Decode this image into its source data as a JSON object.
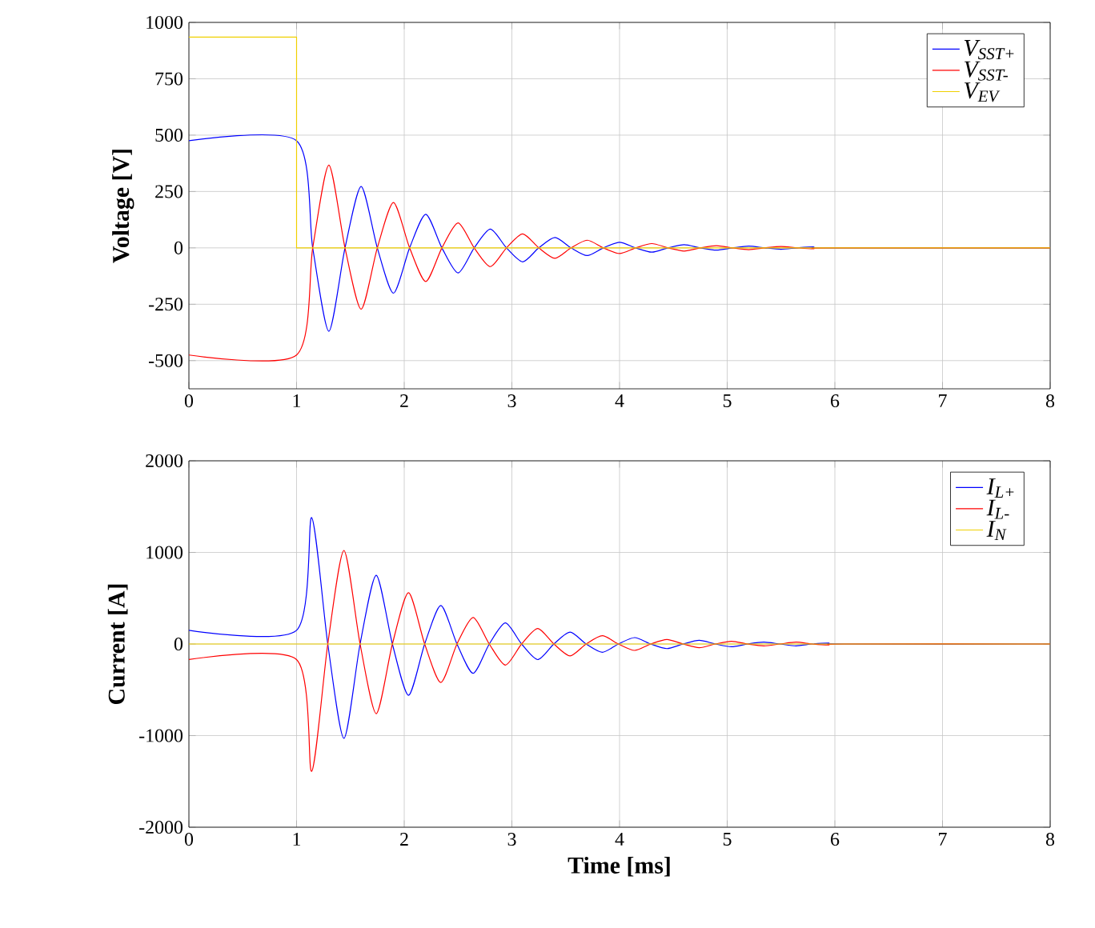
{
  "chart_data": [
    {
      "type": "line",
      "ylabel": "Voltage [V]",
      "xlim": [
        0,
        8
      ],
      "xticks": [
        0,
        1,
        2,
        3,
        4,
        5,
        6,
        7,
        8
      ],
      "ylim": [
        -625,
        1000
      ],
      "yticks": [
        -500,
        -250,
        0,
        250,
        500,
        750,
        1000
      ],
      "grid": true,
      "legend": "top right",
      "series": [
        {
          "name": "V$_{SST+}$",
          "color": "#0000ff",
          "x": [
            0,
            1,
            1.15,
            1.3,
            1.45,
            1.6,
            1.75,
            1.9,
            2.05,
            2.2,
            2.35,
            2.5,
            2.65,
            2.8,
            2.95,
            3.1,
            3.25,
            3.4,
            3.55,
            3.7,
            3.85,
            4.0,
            4.15,
            4.3,
            4.45,
            4.6,
            4.75,
            4.9,
            5.05,
            5.2,
            5.35,
            5.5,
            5.65,
            5.8,
            5.95,
            8
          ],
          "values": [
            475,
            475,
            0,
            -370,
            0,
            272,
            0,
            -201,
            0,
            149,
            0,
            -111,
            0,
            83,
            0,
            -62,
            0,
            46,
            0,
            -34,
            0,
            25,
            0,
            -19,
            0,
            14,
            0,
            -10,
            0,
            8,
            0,
            -6,
            0,
            4,
            0,
            0
          ]
        },
        {
          "name": "V$_{SST-}$",
          "color": "#ff0000",
          "x": [
            0,
            1,
            1.15,
            1.3,
            1.45,
            1.6,
            1.75,
            1.9,
            2.05,
            2.2,
            2.35,
            2.5,
            2.65,
            2.8,
            2.95,
            3.1,
            3.25,
            3.4,
            3.55,
            3.7,
            3.85,
            4.0,
            4.15,
            4.3,
            4.45,
            4.6,
            4.75,
            4.9,
            5.05,
            5.2,
            5.35,
            5.5,
            5.65,
            5.8,
            5.95,
            8
          ],
          "values": [
            -475,
            -475,
            0,
            367,
            0,
            -272,
            0,
            201,
            0,
            -149,
            0,
            111,
            0,
            -83,
            0,
            62,
            0,
            -46,
            0,
            34,
            0,
            -25,
            0,
            19,
            0,
            -14,
            0,
            10,
            0,
            -8,
            0,
            6,
            0,
            -4,
            0,
            0
          ]
        },
        {
          "name": "V$_{EV}$",
          "type": "step",
          "color": "#f0d000",
          "x": [
            0,
            1,
            8
          ],
          "values": [
            935,
            0,
            0
          ]
        }
      ]
    },
    {
      "type": "line",
      "xlabel": "Time [ms]",
      "ylabel": "Current [A]",
      "xlim": [
        0,
        8
      ],
      "xticks": [
        0,
        1,
        2,
        3,
        4,
        5,
        6,
        7,
        8
      ],
      "ylim": [
        -2000,
        2000
      ],
      "yticks": [
        -2000,
        -1000,
        0,
        1000,
        2000
      ],
      "grid": true,
      "legend": "top right",
      "series": [
        {
          "name": "I$_{L+}$",
          "color": "#0000ff",
          "x": [
            0,
            1,
            1.14,
            1.29,
            1.44,
            1.59,
            1.74,
            1.89,
            2.04,
            2.19,
            2.34,
            2.49,
            2.64,
            2.79,
            2.94,
            3.09,
            3.24,
            3.39,
            3.54,
            3.69,
            3.84,
            3.99,
            4.14,
            4.29,
            4.44,
            4.59,
            4.74,
            4.89,
            5.04,
            5.19,
            5.34,
            5.49,
            5.64,
            5.79,
            5.94,
            6.09,
            8
          ],
          "values": [
            150,
            150,
            1380,
            0,
            -1030,
            0,
            750,
            0,
            -560,
            0,
            420,
            0,
            -320,
            0,
            230,
            0,
            -170,
            0,
            130,
            0,
            -90,
            0,
            70,
            0,
            -50,
            0,
            40,
            0,
            -30,
            0,
            20,
            0,
            -20,
            0,
            10,
            0,
            0
          ]
        },
        {
          "name": "I$_{L-}$",
          "color": "#ff0000",
          "x": [
            0,
            1,
            1.14,
            1.29,
            1.44,
            1.59,
            1.74,
            1.89,
            2.04,
            2.19,
            2.34,
            2.49,
            2.64,
            2.79,
            2.94,
            3.09,
            3.24,
            3.39,
            3.54,
            3.69,
            3.84,
            3.99,
            4.14,
            4.29,
            4.44,
            4.59,
            4.74,
            4.89,
            5.04,
            5.19,
            5.34,
            5.49,
            5.64,
            5.79,
            5.94,
            6.09,
            8
          ],
          "values": [
            -170,
            -170,
            -1390,
            0,
            1020,
            0,
            -760,
            0,
            560,
            0,
            -420,
            0,
            290,
            0,
            -230,
            0,
            170,
            0,
            -130,
            0,
            90,
            0,
            -70,
            0,
            50,
            0,
            -40,
            0,
            30,
            0,
            -20,
            0,
            20,
            0,
            -10,
            0,
            0
          ]
        },
        {
          "name": "I$_{N}$",
          "color": "#f0d000",
          "x": [
            0,
            8
          ],
          "values": [
            0,
            0
          ]
        }
      ]
    }
  ]
}
